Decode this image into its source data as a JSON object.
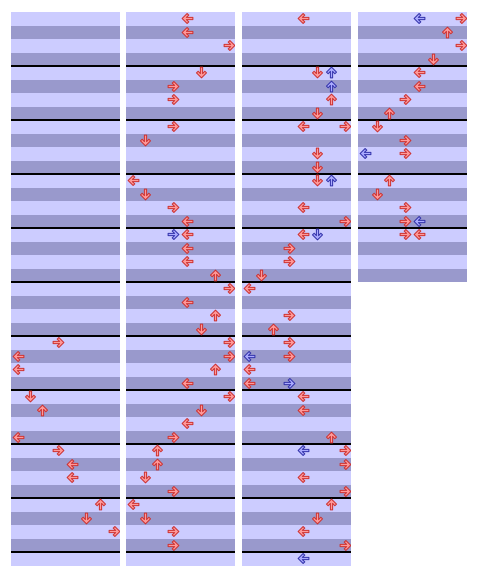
{
  "colors": {
    "row_light": "#ccccff",
    "row_dark": "#9999cc",
    "measure_line": "#000000",
    "note_red_fill": "#ff9999",
    "note_red_stroke": "#cc3333",
    "note_blue_fill": "#aaaaff",
    "note_blue_stroke": "#3333aa"
  },
  "arrow_icons": {
    "left": "left-arrow-icon",
    "down": "down-arrow-icon",
    "up": "up-arrow-icon",
    "right": "right-arrow-icon"
  },
  "notes": [
    {
      "c": 0,
      "row": 24,
      "lane": 3,
      "color": "red"
    },
    {
      "c": 0,
      "row": 25,
      "lane": 0,
      "color": "red"
    },
    {
      "c": 0,
      "row": 26,
      "lane": 0,
      "color": "red"
    },
    {
      "c": 0,
      "row": 28,
      "lane": 1,
      "color": "red"
    },
    {
      "c": 0,
      "row": 29,
      "lane": 2,
      "color": "red"
    },
    {
      "c": 0,
      "row": 31,
      "lane": 0,
      "color": "red"
    },
    {
      "c": 0,
      "row": 32,
      "lane": 3,
      "color": "red"
    },
    {
      "c": 0,
      "row": 33,
      "lane": 4,
      "color": "red"
    },
    {
      "c": 0,
      "row": 34,
      "lane": 4,
      "color": "red"
    },
    {
      "c": 0,
      "row": 36,
      "lane": 6,
      "color": "red"
    },
    {
      "c": 0,
      "row": 37,
      "lane": 5,
      "color": "red"
    },
    {
      "c": 0,
      "row": 38,
      "lane": 7,
      "color": "red"
    },
    {
      "c": 1,
      "row": 0,
      "lane": 4,
      "color": "red"
    },
    {
      "c": 1,
      "row": 1,
      "lane": 4,
      "color": "red"
    },
    {
      "c": 1,
      "row": 2,
      "lane": 7,
      "color": "red"
    },
    {
      "c": 1,
      "row": 4,
      "lane": 5,
      "color": "red"
    },
    {
      "c": 1,
      "row": 5,
      "lane": 3,
      "color": "red"
    },
    {
      "c": 1,
      "row": 6,
      "lane": 3,
      "color": "red"
    },
    {
      "c": 1,
      "row": 8,
      "lane": 3,
      "color": "red"
    },
    {
      "c": 1,
      "row": 9,
      "lane": 1,
      "color": "red"
    },
    {
      "c": 1,
      "row": 12,
      "lane": 0,
      "color": "red"
    },
    {
      "c": 1,
      "row": 13,
      "lane": 1,
      "color": "red"
    },
    {
      "c": 1,
      "row": 14,
      "lane": 3,
      "color": "red"
    },
    {
      "c": 1,
      "row": 15,
      "lane": 4,
      "color": "red"
    },
    {
      "c": 1,
      "row": 16,
      "lane": 3,
      "color": "blue"
    },
    {
      "c": 1,
      "row": 16,
      "lane": 4,
      "color": "red"
    },
    {
      "c": 1,
      "row": 17,
      "lane": 4,
      "color": "red"
    },
    {
      "c": 1,
      "row": 18,
      "lane": 4,
      "color": "red"
    },
    {
      "c": 1,
      "row": 19,
      "lane": 6,
      "color": "red"
    },
    {
      "c": 1,
      "row": 20,
      "lane": 7,
      "color": "red"
    },
    {
      "c": 1,
      "row": 21,
      "lane": 4,
      "color": "red"
    },
    {
      "c": 1,
      "row": 22,
      "lane": 6,
      "color": "red"
    },
    {
      "c": 1,
      "row": 23,
      "lane": 5,
      "color": "red"
    },
    {
      "c": 1,
      "row": 24,
      "lane": 7,
      "color": "red"
    },
    {
      "c": 1,
      "row": 25,
      "lane": 7,
      "color": "red"
    },
    {
      "c": 1,
      "row": 26,
      "lane": 6,
      "color": "red"
    },
    {
      "c": 1,
      "row": 27,
      "lane": 4,
      "color": "red"
    },
    {
      "c": 1,
      "row": 28,
      "lane": 7,
      "color": "red"
    },
    {
      "c": 1,
      "row": 29,
      "lane": 5,
      "color": "red"
    },
    {
      "c": 1,
      "row": 30,
      "lane": 4,
      "color": "red"
    },
    {
      "c": 1,
      "row": 31,
      "lane": 3,
      "color": "red"
    },
    {
      "c": 1,
      "row": 32,
      "lane": 2,
      "color": "red"
    },
    {
      "c": 1,
      "row": 33,
      "lane": 2,
      "color": "red"
    },
    {
      "c": 1,
      "row": 34,
      "lane": 1,
      "color": "red"
    },
    {
      "c": 1,
      "row": 35,
      "lane": 3,
      "color": "red"
    },
    {
      "c": 1,
      "row": 36,
      "lane": 0,
      "color": "red"
    },
    {
      "c": 1,
      "row": 37,
      "lane": 1,
      "color": "red"
    },
    {
      "c": 1,
      "row": 38,
      "lane": 3,
      "color": "red"
    },
    {
      "c": 1,
      "row": 39,
      "lane": 3,
      "color": "red"
    },
    {
      "c": 2,
      "row": 0,
      "lane": 4,
      "color": "red"
    },
    {
      "c": 2,
      "row": 4,
      "lane": 5,
      "color": "red"
    },
    {
      "c": 2,
      "row": 4,
      "lane": 6,
      "color": "blue"
    },
    {
      "c": 2,
      "row": 5,
      "lane": 6,
      "color": "blue"
    },
    {
      "c": 2,
      "row": 6,
      "lane": 6,
      "color": "red"
    },
    {
      "c": 2,
      "row": 7,
      "lane": 5,
      "color": "red"
    },
    {
      "c": 2,
      "row": 8,
      "lane": 4,
      "color": "red"
    },
    {
      "c": 2,
      "row": 8,
      "lane": 7,
      "color": "red"
    },
    {
      "c": 2,
      "row": 10,
      "lane": 5,
      "color": "red"
    },
    {
      "c": 2,
      "row": 11,
      "lane": 5,
      "color": "red"
    },
    {
      "c": 2,
      "row": 12,
      "lane": 5,
      "color": "red"
    },
    {
      "c": 2,
      "row": 12,
      "lane": 6,
      "color": "blue"
    },
    {
      "c": 2,
      "row": 14,
      "lane": 4,
      "color": "red"
    },
    {
      "c": 2,
      "row": 15,
      "lane": 7,
      "color": "red"
    },
    {
      "c": 2,
      "row": 16,
      "lane": 4,
      "color": "red"
    },
    {
      "c": 2,
      "row": 16,
      "lane": 5,
      "color": "blue"
    },
    {
      "c": 2,
      "row": 17,
      "lane": 3,
      "color": "red"
    },
    {
      "c": 2,
      "row": 18,
      "lane": 3,
      "color": "red"
    },
    {
      "c": 2,
      "row": 19,
      "lane": 1,
      "color": "red"
    },
    {
      "c": 2,
      "row": 20,
      "lane": 0,
      "color": "red"
    },
    {
      "c": 2,
      "row": 22,
      "lane": 3,
      "color": "red"
    },
    {
      "c": 2,
      "row": 23,
      "lane": 2,
      "color": "red"
    },
    {
      "c": 2,
      "row": 24,
      "lane": 3,
      "color": "red"
    },
    {
      "c": 2,
      "row": 25,
      "lane": 0,
      "color": "blue"
    },
    {
      "c": 2,
      "row": 25,
      "lane": 3,
      "color": "red"
    },
    {
      "c": 2,
      "row": 26,
      "lane": 0,
      "color": "red"
    },
    {
      "c": 2,
      "row": 27,
      "lane": 0,
      "color": "red"
    },
    {
      "c": 2,
      "row": 27,
      "lane": 3,
      "color": "blue"
    },
    {
      "c": 2,
      "row": 28,
      "lane": 4,
      "color": "red"
    },
    {
      "c": 2,
      "row": 29,
      "lane": 4,
      "color": "red"
    },
    {
      "c": 2,
      "row": 31,
      "lane": 6,
      "color": "red"
    },
    {
      "c": 2,
      "row": 32,
      "lane": 4,
      "color": "blue"
    },
    {
      "c": 2,
      "row": 32,
      "lane": 7,
      "color": "red"
    },
    {
      "c": 2,
      "row": 33,
      "lane": 7,
      "color": "red"
    },
    {
      "c": 2,
      "row": 34,
      "lane": 4,
      "color": "red"
    },
    {
      "c": 2,
      "row": 35,
      "lane": 7,
      "color": "red"
    },
    {
      "c": 2,
      "row": 36,
      "lane": 6,
      "color": "red"
    },
    {
      "c": 2,
      "row": 37,
      "lane": 5,
      "color": "red"
    },
    {
      "c": 2,
      "row": 38,
      "lane": 4,
      "color": "red"
    },
    {
      "c": 2,
      "row": 39,
      "lane": 7,
      "color": "red"
    },
    {
      "c": 2,
      "row": 40,
      "lane": 4,
      "color": "blue"
    },
    {
      "c": 3,
      "row": 0,
      "lane": 4,
      "color": "blue"
    },
    {
      "c": 3,
      "row": 0,
      "lane": 7,
      "color": "red"
    },
    {
      "c": 3,
      "row": 1,
      "lane": 6,
      "color": "red"
    },
    {
      "c": 3,
      "row": 2,
      "lane": 7,
      "color": "red"
    },
    {
      "c": 3,
      "row": 3,
      "lane": 5,
      "color": "red"
    },
    {
      "c": 3,
      "row": 4,
      "lane": 4,
      "color": "red"
    },
    {
      "c": 3,
      "row": 5,
      "lane": 4,
      "color": "red"
    },
    {
      "c": 3,
      "row": 6,
      "lane": 3,
      "color": "red"
    },
    {
      "c": 3,
      "row": 7,
      "lane": 2,
      "color": "red"
    },
    {
      "c": 3,
      "row": 8,
      "lane": 1,
      "color": "red"
    },
    {
      "c": 3,
      "row": 9,
      "lane": 3,
      "color": "red"
    },
    {
      "c": 3,
      "row": 10,
      "lane": 0,
      "color": "blue"
    },
    {
      "c": 3,
      "row": 10,
      "lane": 3,
      "color": "red"
    },
    {
      "c": 3,
      "row": 12,
      "lane": 2,
      "color": "red"
    },
    {
      "c": 3,
      "row": 13,
      "lane": 1,
      "color": "red"
    },
    {
      "c": 3,
      "row": 14,
      "lane": 3,
      "color": "red"
    },
    {
      "c": 3,
      "row": 15,
      "lane": 3,
      "color": "red"
    },
    {
      "c": 3,
      "row": 15,
      "lane": 4,
      "color": "blue"
    },
    {
      "c": 3,
      "row": 16,
      "lane": 3,
      "color": "red"
    },
    {
      "c": 3,
      "row": 16,
      "lane": 4,
      "color": "red"
    }
  ]
}
